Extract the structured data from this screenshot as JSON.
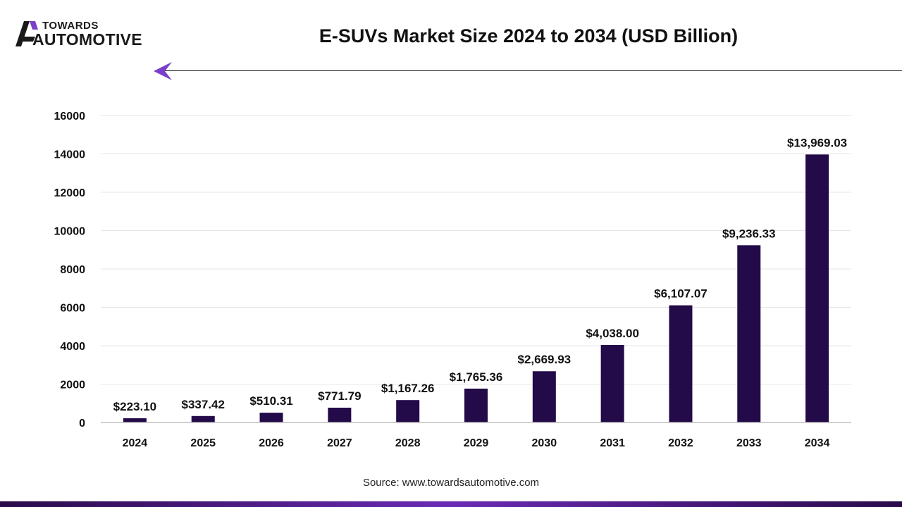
{
  "logo": {
    "line1": "TOWARDS",
    "line2": "AUTOMOTIVE"
  },
  "source": "Source: www.towardsautomotive.com",
  "colors": {
    "bar": "#230a48",
    "accent": "#7b3fc9",
    "grid": "#e6e6e6"
  },
  "icons": {
    "arrow": "left-arrow-icon",
    "logo": "logo-mark-icon"
  },
  "chart_data": {
    "type": "bar",
    "title": "E-SUVs Market Size 2024 to 2034 (USD Billion)",
    "xlabel": "",
    "ylabel": "",
    "categories": [
      "2024",
      "2025",
      "2026",
      "2027",
      "2028",
      "2029",
      "2030",
      "2031",
      "2032",
      "2033",
      "2034"
    ],
    "values": [
      223.1,
      337.42,
      510.31,
      771.79,
      1167.26,
      1765.36,
      2669.93,
      4038.0,
      6107.07,
      9236.33,
      13969.03
    ],
    "value_labels": [
      "$223.10",
      "$337.42",
      "$510.31",
      "$771.79",
      "$1,167.26",
      "$1,765.36",
      "$2,669.93",
      "$4,038.00",
      "$6,107.07",
      "$9,236.33",
      "$13,969.03"
    ],
    "yticks": [
      0,
      2000,
      4000,
      6000,
      8000,
      10000,
      12000,
      14000,
      16000
    ],
    "ylim": [
      0,
      16000
    ],
    "grid": true,
    "legend": "none"
  }
}
